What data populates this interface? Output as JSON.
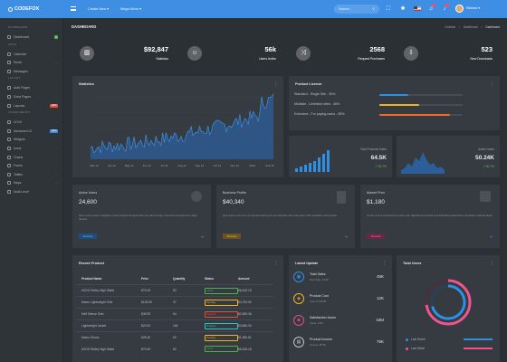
{
  "brand": "CODEFOX",
  "topbar": {
    "menu1": "Create New",
    "menu2": "Mega Menu",
    "search_placeholder": "Search...",
    "user": "Richard"
  },
  "sidebar": {
    "sections": [
      "DASHBOARD",
      "APPS",
      "LAYOUT",
      "COMPONENTS"
    ],
    "items": [
      {
        "label": "Dashboard",
        "badge": "4",
        "badge_color": "#4caf50"
      },
      {
        "label": "Calendar"
      },
      {
        "label": "Email",
        "chevron": true
      },
      {
        "label": "Messages"
      },
      {
        "label": "Auth Pages",
        "chevron": true
      },
      {
        "label": "Extra Pages",
        "chevron": true
      },
      {
        "label": "Layouts",
        "badge": "NEW",
        "badge_color": "#e74c3c"
      },
      {
        "label": "UI Kit",
        "chevron": true
      },
      {
        "label": "Advanced UI",
        "badge": "NEW",
        "badge_color": "#3e8fe3"
      },
      {
        "label": "Widgets"
      },
      {
        "label": "Icons",
        "chevron": true
      },
      {
        "label": "Charts",
        "chevron": true
      },
      {
        "label": "Forms",
        "chevron": true
      },
      {
        "label": "Tables",
        "chevron": true
      },
      {
        "label": "Maps",
        "chevron": true
      },
      {
        "label": "Multi Level",
        "chevron": true
      }
    ]
  },
  "page": {
    "title": "DASHBOARD",
    "breadcrumb": [
      "Codefox",
      "Dashboard",
      "Dashboard"
    ]
  },
  "stats": [
    {
      "value": "$92,847",
      "label": "Statistics",
      "color": "#7b7fd8",
      "icon": "chart-icon"
    },
    {
      "value": "56k",
      "label": "Users Active",
      "color": "#2eaee0",
      "icon": "users-icon"
    },
    {
      "value": "2568",
      "label": "Request Purchases",
      "color": "#ef5690",
      "icon": "shuffle-icon"
    },
    {
      "value": "523",
      "label": "New Downloads",
      "color": "#5fc24a",
      "icon": "download-icon"
    }
  ],
  "statistics": {
    "title": "Statistics",
    "xticks": [
      "Mar 12",
      "Apr 12",
      "May 12",
      "Jun 12",
      "Jul 12",
      "Aug 12",
      "Sep 12",
      "Oct 12",
      "Nov 12",
      "2013",
      "Feb 13"
    ],
    "yticks": [
      "25",
      "50",
      "75",
      "100"
    ]
  },
  "product_license": {
    "title": "Product License",
    "rows": [
      {
        "label": "Standard - Single Site",
        "percent": "35%",
        "value": 0.35,
        "color": "#2f8fe3"
      },
      {
        "label": "Multisite - Unlimited sites",
        "percent": "48%",
        "value": 0.48,
        "color": "#f0b429"
      },
      {
        "label": "Extended - For paying users",
        "percent": "85%",
        "value": 0.85,
        "color": "#ef6c2a"
      }
    ]
  },
  "mini_stats": [
    {
      "label": "Total Products Sales",
      "value": "64.5K",
      "change": "30.7%",
      "color": "#2f8fe3"
    },
    {
      "label": "Active Users",
      "value": "50.24K",
      "change": "30.7%",
      "color": "#2f8fe3"
    }
  ],
  "info_cards": [
    {
      "title": "Active Users",
      "value": "24,600",
      "text": "Nemo enim ipsam voluptatem quia voluptas sit aspernatur aut odit aut fugit, sed quia consequuntur magni dolores",
      "button": "Success",
      "button_color": "#2f8fe3"
    },
    {
      "title": "Business Profits",
      "value": "$40,340",
      "text": "Quis autem vel eum iure reprehenderit qui in ea voluptate velit esse quam nihil molestiae consequatur",
      "button": "Success",
      "button_color": "#e6b43c"
    },
    {
      "title": "Market Price",
      "value": "$1,180",
      "text": "At vero eos et accusamus et iusto odio dignissimos ducimus qui blanditiis praesentium voluptatum deleniti atque",
      "button": "Success",
      "button_color": "#e24d8a"
    }
  ],
  "recent_product": {
    "title": "Recent Product",
    "headers": [
      "Product Name",
      "Price",
      "Quantity",
      "Status",
      "Amount"
    ],
    "rows": [
      {
        "name": "ASOS Ridley High Waist",
        "price": "$79.49",
        "qty": "82",
        "status": "Active",
        "status_color": "#4caf50",
        "amount": "$6,518.18"
      },
      {
        "name": "Marco Lightweight Shirt",
        "price": "$128.50",
        "qty": "37",
        "status": "Pending",
        "status_color": "#f0b429",
        "amount": "$4,754.50"
      },
      {
        "name": "Half Sleeve Shirt",
        "price": "$39.99",
        "qty": "64",
        "status": "Rejected",
        "status_color": "#e74c3c",
        "amount": "$2,559.36"
      },
      {
        "name": "Lightweight Jacket",
        "price": "$20.00",
        "qty": "184",
        "status": "Progress",
        "status_color": "#2fc4c4",
        "amount": "$3,680.00"
      },
      {
        "name": "Marco Shoes",
        "price": "$28.49",
        "qty": "69",
        "status": "Pending",
        "status_color": "#f0b429",
        "amount": "$1,965.81"
      },
      {
        "name": "ASOS Ridley High Waist",
        "price": "$79.49",
        "qty": "82",
        "status": "Active",
        "status_color": "#4caf50",
        "amount": "$6,518.18"
      }
    ]
  },
  "latest_update": {
    "title": "Latest Update",
    "rows": [
      {
        "title": "Total Sales",
        "sub": "New Sale: 12.06",
        "value": "45K",
        "color": "#2f8fe3",
        "icon": "bag-icon"
      },
      {
        "title": "Product Cost",
        "sub": "Cost: $ 215.06",
        "value": "12K",
        "color": "#f0b429",
        "icon": "tag-icon"
      },
      {
        "title": "Satisfaction Users",
        "sub": "Users: 4.5K",
        "value": "15M",
        "color": "#e24d8a",
        "icon": "user-icon"
      },
      {
        "title": "Product Income",
        "sub": "Income: 85.5K",
        "value": "75K",
        "color": "#c0c5cc",
        "icon": "money-icon"
      }
    ]
  },
  "total_users": {
    "title": "Total Users",
    "legend": [
      {
        "label": "Last Month",
        "color": "#2f8fe3"
      },
      {
        "label": "Last Week",
        "color": "#ef5690"
      }
    ]
  }
}
